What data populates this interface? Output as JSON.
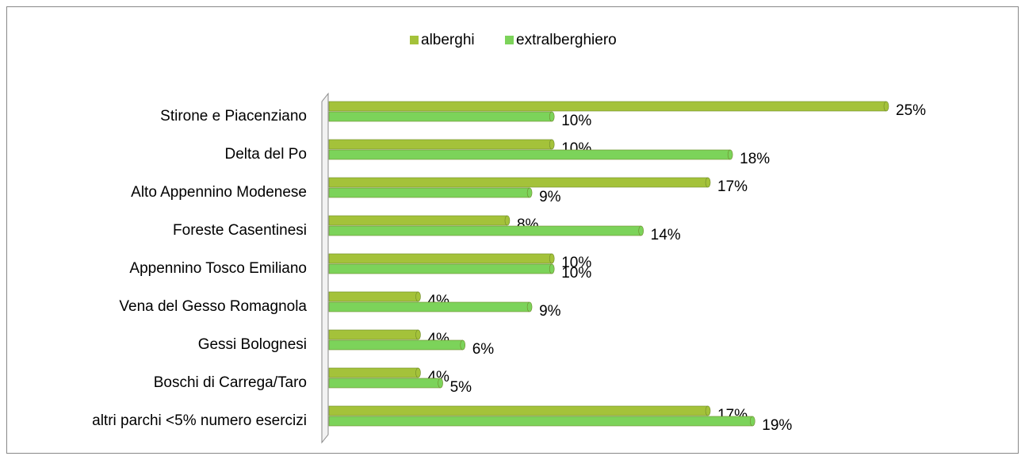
{
  "chart_data": {
    "type": "bar",
    "orientation": "horizontal",
    "categories": [
      "Stirone e Piacenziano",
      "Delta del Po",
      "Alto Appennino Modenese",
      "Foreste Casentinesi",
      "Appennino Tosco Emiliano",
      "Vena del Gesso Romagnola",
      "Gessi Bolognesi",
      "Boschi di Carrega/Taro",
      "altri parchi <5% numero esercizi"
    ],
    "series": [
      {
        "name": "alberghi",
        "color": "#a4c23a",
        "values": [
          25,
          10,
          17,
          8,
          10,
          4,
          4,
          4,
          17
        ],
        "value_labels": [
          "25%",
          "10%",
          "17%",
          "8%",
          "10%",
          "4%",
          "4%",
          "4%",
          "17%"
        ]
      },
      {
        "name": "extralberghiero",
        "color": "#7cd35a",
        "values": [
          10,
          18,
          9,
          14,
          10,
          9,
          6,
          5,
          19
        ],
        "value_labels": [
          "10%",
          "18%",
          "9%",
          "14%",
          "10%",
          "9%",
          "6%",
          "5%",
          "19%"
        ]
      }
    ],
    "legend": "top"
  }
}
